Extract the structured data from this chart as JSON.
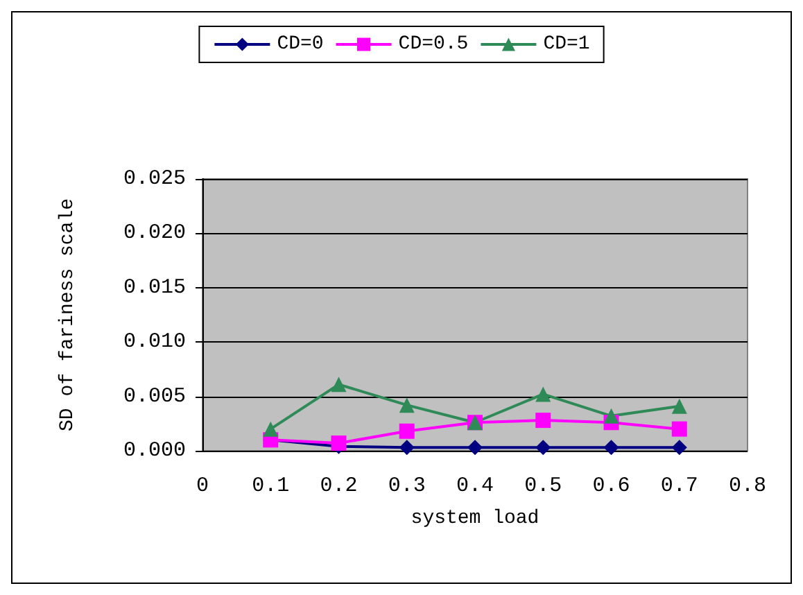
{
  "chart_data": {
    "type": "line",
    "xlabel": "system load",
    "ylabel": "SD of fariness scale",
    "x": [
      0.1,
      0.2,
      0.3,
      0.4,
      0.5,
      0.6,
      0.7
    ],
    "series": [
      {
        "name": "CD=0",
        "color": "#000080",
        "marker": "diamond",
        "values": [
          0.001,
          0.0004,
          0.0003,
          0.0003,
          0.0003,
          0.0003,
          0.0003
        ]
      },
      {
        "name": "CD=0.5",
        "color": "#ff00ff",
        "marker": "square",
        "values": [
          0.001,
          0.0007,
          0.0018,
          0.0026,
          0.0028,
          0.0026,
          0.002
        ]
      },
      {
        "name": "CD=1",
        "color": "#2e8b57",
        "marker": "triangle",
        "values": [
          0.002,
          0.0061,
          0.0042,
          0.0026,
          0.0052,
          0.0032,
          0.0041
        ]
      }
    ],
    "xlim": [
      0,
      0.8
    ],
    "xticks": [
      0,
      0.1,
      0.2,
      0.3,
      0.4,
      0.5,
      0.6,
      0.7,
      0.8
    ],
    "ylim": [
      0,
      0.025
    ],
    "yticks": [
      {
        "value": 0,
        "label": "0.000"
      },
      {
        "value": 0.005,
        "label": "0.005"
      },
      {
        "value": 0.01,
        "label": "0.010"
      },
      {
        "value": 0.015,
        "label": "0.015"
      },
      {
        "value": 0.02,
        "label": "0.020"
      },
      {
        "value": 0.025,
        "label": "0.025"
      }
    ],
    "grid": "y",
    "legend": "top",
    "line_style": "solid"
  }
}
